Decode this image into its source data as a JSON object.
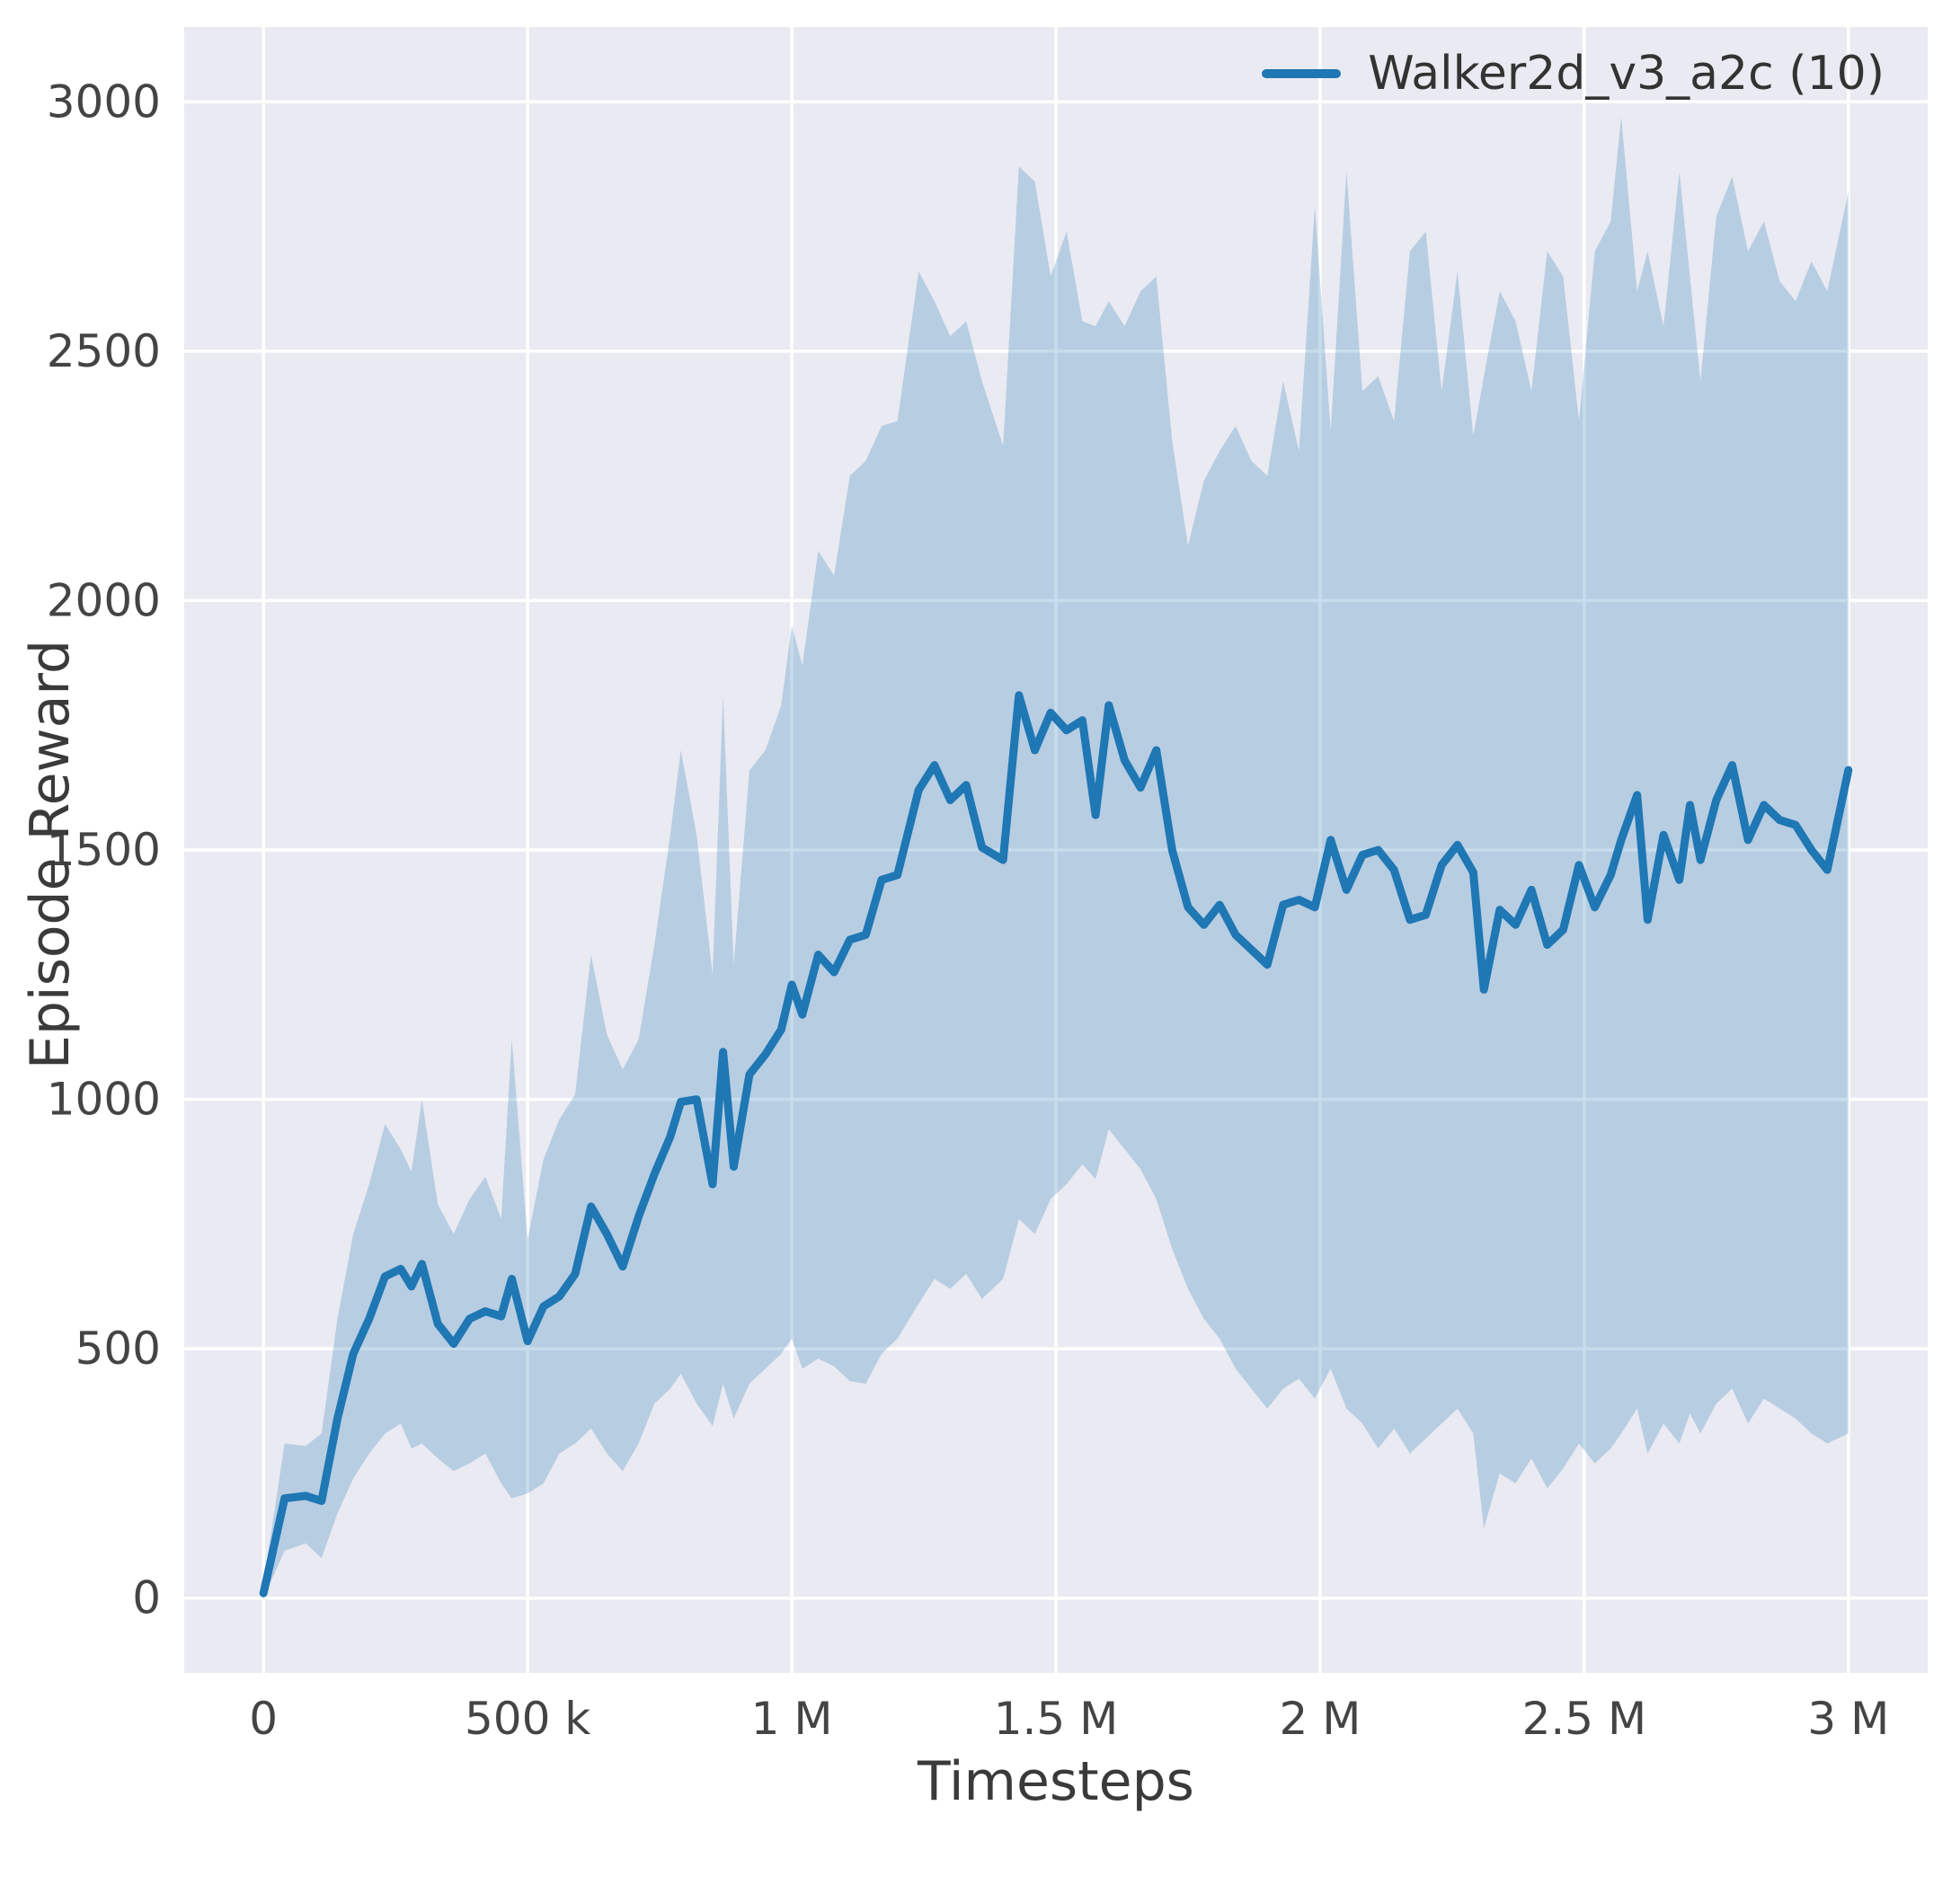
{
  "chart_data": {
    "type": "line",
    "title": "",
    "xlabel": "Timesteps",
    "ylabel": "Episode Reward",
    "legend": {
      "position": "upper right"
    },
    "colors": {
      "line": "#1f77b4",
      "band_opacity": 0.25,
      "plot_bg": "#eaeaf2",
      "grid": "#ffffff",
      "tick_text": "#444444",
      "label_text": "#3a3a3a"
    },
    "grid": true,
    "xlim": [
      0,
      3000000
    ],
    "ylim": [
      0,
      3000
    ],
    "xticks": {
      "values": [
        0,
        500000,
        1000000,
        1500000,
        2000000,
        2500000,
        3000000
      ],
      "labels": [
        "0",
        "500 k",
        "1 M",
        "1.5 M",
        "2 M",
        "2.5 M",
        "3 M"
      ]
    },
    "yticks": {
      "values": [
        0,
        500,
        1000,
        1500,
        2000,
        2500,
        3000
      ],
      "labels": [
        "0",
        "500",
        "1000",
        "1500",
        "2000",
        "2500",
        "3000"
      ]
    },
    "series": [
      {
        "name": "Walker2d_v3_a2c (10)",
        "x": [
          0,
          40000,
          80000,
          110000,
          140000,
          170000,
          200000,
          230000,
          260000,
          280000,
          300000,
          330000,
          360000,
          390000,
          420000,
          450000,
          470000,
          500000,
          530000,
          560000,
          590000,
          620000,
          650000,
          680000,
          710000,
          740000,
          770000,
          790000,
          820000,
          850000,
          870000,
          890000,
          920000,
          950000,
          980000,
          1000000,
          1020000,
          1050000,
          1080000,
          1110000,
          1140000,
          1170000,
          1200000,
          1240000,
          1270000,
          1300000,
          1330000,
          1360000,
          1400000,
          1430000,
          1460000,
          1490000,
          1520000,
          1550000,
          1575000,
          1600000,
          1630000,
          1660000,
          1690000,
          1720000,
          1750000,
          1780000,
          1810000,
          1840000,
          1870000,
          1900000,
          1930000,
          1960000,
          1990000,
          2020000,
          2050000,
          2080000,
          2110000,
          2140000,
          2170000,
          2200000,
          2230000,
          2260000,
          2290000,
          2310000,
          2340000,
          2370000,
          2400000,
          2430000,
          2460000,
          2490000,
          2520000,
          2550000,
          2570000,
          2600000,
          2620000,
          2650000,
          2680000,
          2700000,
          2720000,
          2750000,
          2780000,
          2810000,
          2840000,
          2870000,
          2900000,
          2930000,
          2960000,
          3000000
        ],
        "mean": [
          10,
          200,
          205,
          195,
          360,
          490,
          560,
          645,
          660,
          625,
          670,
          550,
          510,
          560,
          575,
          565,
          640,
          515,
          585,
          605,
          650,
          785,
          730,
          665,
          765,
          850,
          925,
          995,
          1000,
          830,
          1095,
          865,
          1050,
          1090,
          1140,
          1230,
          1170,
          1290,
          1255,
          1320,
          1330,
          1440,
          1450,
          1620,
          1670,
          1600,
          1630,
          1505,
          1480,
          1810,
          1700,
          1775,
          1740,
          1760,
          1570,
          1790,
          1680,
          1625,
          1700,
          1500,
          1385,
          1350,
          1390,
          1330,
          1300,
          1270,
          1390,
          1400,
          1385,
          1520,
          1420,
          1490,
          1500,
          1460,
          1360,
          1370,
          1470,
          1510,
          1455,
          1220,
          1380,
          1350,
          1420,
          1310,
          1340,
          1470,
          1385,
          1450,
          1520,
          1610,
          1360,
          1530,
          1440,
          1590,
          1480,
          1600,
          1670,
          1520,
          1590,
          1560,
          1550,
          1500,
          1460,
          1660
        ],
        "lower": [
          0,
          95,
          110,
          80,
          170,
          240,
          290,
          330,
          350,
          300,
          310,
          280,
          255,
          270,
          290,
          230,
          200,
          210,
          230,
          290,
          310,
          340,
          290,
          255,
          310,
          390,
          420,
          450,
          390,
          345,
          430,
          360,
          430,
          460,
          490,
          520,
          460,
          480,
          465,
          435,
          430,
          490,
          520,
          590,
          640,
          620,
          650,
          600,
          640,
          760,
          730,
          800,
          830,
          870,
          840,
          940,
          900,
          860,
          800,
          700,
          620,
          560,
          520,
          460,
          420,
          380,
          420,
          440,
          400,
          460,
          380,
          350,
          300,
          340,
          290,
          320,
          350,
          380,
          330,
          140,
          250,
          230,
          280,
          220,
          260,
          310,
          270,
          300,
          330,
          380,
          290,
          350,
          310,
          370,
          330,
          390,
          420,
          350,
          400,
          380,
          360,
          330,
          310,
          330
        ],
        "upper": [
          30,
          310,
          305,
          330,
          560,
          730,
          830,
          950,
          900,
          855,
          1000,
          790,
          730,
          800,
          845,
          760,
          1120,
          720,
          880,
          960,
          1010,
          1290,
          1130,
          1060,
          1120,
          1310,
          1530,
          1700,
          1530,
          1250,
          1810,
          1270,
          1660,
          1700,
          1790,
          1950,
          1870,
          2100,
          2050,
          2250,
          2280,
          2350,
          2360,
          2660,
          2600,
          2530,
          2560,
          2440,
          2310,
          2870,
          2840,
          2650,
          2740,
          2560,
          2550,
          2600,
          2550,
          2620,
          2650,
          2320,
          2110,
          2240,
          2300,
          2350,
          2280,
          2250,
          2440,
          2300,
          2790,
          2340,
          2860,
          2420,
          2450,
          2360,
          2700,
          2740,
          2420,
          2660,
          2330,
          2450,
          2620,
          2560,
          2420,
          2700,
          2650,
          2360,
          2700,
          2760,
          2970,
          2620,
          2700,
          2550,
          2860,
          2650,
          2440,
          2770,
          2850,
          2700,
          2760,
          2640,
          2600,
          2680,
          2620,
          2820
        ]
      }
    ]
  }
}
